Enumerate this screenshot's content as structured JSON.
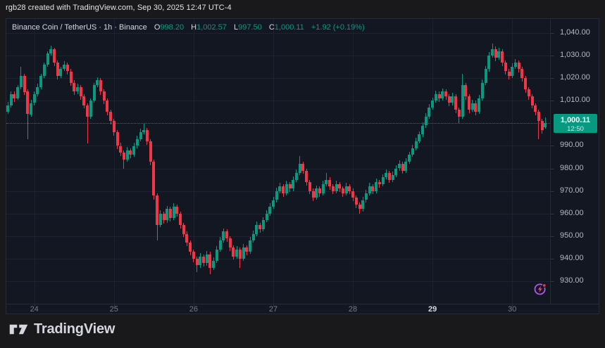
{
  "attribution": "rgb28 created with TradingView.com, Sep 30, 2025 12:47 UTC-4",
  "legend": {
    "title": "Binance Coin / TetherUS · 1h · Binance",
    "o_label": "O",
    "o_value": "998.20",
    "h_label": "H",
    "h_value": "1,002.57",
    "l_label": "L",
    "l_value": "997.50",
    "c_label": "C",
    "c_value": "1,000.11",
    "change": "+1.92 (+0.19%)"
  },
  "price_scale": {
    "ticks": [
      "1,040.00",
      "1,030.00",
      "1,020.00",
      "1,010.00",
      "990.00",
      "980.00",
      "970.00",
      "960.00",
      "950.00",
      "940.00",
      "930.00"
    ],
    "last_price": "1,000.11",
    "countdown": "12:50"
  },
  "time_scale": {
    "labels": [
      {
        "text": "24",
        "strong": false
      },
      {
        "text": "25",
        "strong": false
      },
      {
        "text": "26",
        "strong": false
      },
      {
        "text": "27",
        "strong": false
      },
      {
        "text": "28",
        "strong": false
      },
      {
        "text": "29",
        "strong": true
      },
      {
        "text": "30",
        "strong": false
      }
    ]
  },
  "footer": {
    "brand": "TradingView"
  },
  "colors": {
    "up": "#089981",
    "down": "#f23645",
    "panel_bg": "#131722",
    "outer_bg": "#19191c",
    "grid": "#1d2130",
    "axis_text": "#787b86",
    "price_text": "#b6b9c1",
    "title_text": "#d6d9e0",
    "label_bg": "#089981",
    "flash_purple": "#a957e3",
    "flash_bolt": "#f0437c",
    "flash_dot": "#f23645"
  },
  "chart_data": {
    "type": "candlestick",
    "symbol": "Binance Coin / TetherUS",
    "interval": "1h",
    "exchange": "Binance",
    "title": "Binance Coin / TetherUS · 1h · Binance",
    "last": {
      "open": 998.2,
      "high": 1002.57,
      "low": 997.5,
      "close": 1000.11,
      "change": "+1.92",
      "change_pct": "+0.19%"
    },
    "x_days": [
      "24",
      "25",
      "26",
      "27",
      "28",
      "29",
      "30"
    ],
    "y_ticks": [
      1040,
      1030,
      1020,
      1010,
      990,
      980,
      970,
      960,
      950,
      940,
      930
    ],
    "y_range": [
      925,
      1046
    ],
    "grid": true,
    "legend_position": "top-left",
    "candles_note": "hourly OHLC [open,high,low,close], Sep 23 16:00 through Sep 30 ~12:00, values estimated from gridlines",
    "candles": [
      [
        1005,
        1009.5,
        1004,
        1008
      ],
      [
        1008,
        1014,
        1007,
        1013
      ],
      [
        1013,
        1014,
        1009.5,
        1011
      ],
      [
        1011,
        1017,
        1010.5,
        1016
      ],
      [
        1016,
        1025,
        1015,
        1021
      ],
      [
        1021,
        1022,
        1012.5,
        1014
      ],
      [
        1014,
        1015,
        993,
        1004
      ],
      [
        1004,
        1010.5,
        1003,
        1009
      ],
      [
        1009,
        1014,
        1008,
        1013
      ],
      [
        1013,
        1017.5,
        1012,
        1016
      ],
      [
        1016,
        1022,
        1015,
        1021
      ],
      [
        1021,
        1027,
        1020,
        1026
      ],
      [
        1026,
        1032,
        1025,
        1031
      ],
      [
        1031,
        1034.5,
        1030,
        1033
      ],
      [
        1033,
        1033.5,
        1025.5,
        1027
      ],
      [
        1027,
        1028,
        1019.5,
        1021
      ],
      [
        1021,
        1025,
        1020,
        1024
      ],
      [
        1024,
        1027.5,
        1023,
        1026
      ],
      [
        1026,
        1027,
        1021.5,
        1023
      ],
      [
        1023,
        1024,
        1016.5,
        1018
      ],
      [
        1018,
        1019,
        1012.5,
        1014
      ],
      [
        1014,
        1017.5,
        1013,
        1016
      ],
      [
        1016,
        1017,
        1010.5,
        1012
      ],
      [
        1012,
        1013,
        1006.5,
        1008
      ],
      [
        1008,
        1009,
        991,
        1003
      ],
      [
        1003,
        1011,
        1002,
        1010
      ],
      [
        1010,
        1018,
        1009,
        1017
      ],
      [
        1017,
        1020.5,
        1016,
        1019
      ],
      [
        1019,
        1020,
        1012.5,
        1014
      ],
      [
        1014,
        1015,
        1008.5,
        1010
      ],
      [
        1010,
        1011,
        1003.5,
        1005
      ],
      [
        1005,
        1006,
        999.5,
        1001
      ],
      [
        1001,
        1002,
        994.5,
        996
      ],
      [
        996,
        997,
        988.5,
        990
      ],
      [
        990,
        991.5,
        985.5,
        987
      ],
      [
        987,
        988,
        980,
        984
      ],
      [
        984,
        989.5,
        983,
        988
      ],
      [
        988,
        989,
        984.5,
        986
      ],
      [
        986,
        991.5,
        985,
        990
      ],
      [
        990,
        994.5,
        989,
        993
      ],
      [
        993,
        997.5,
        992,
        996
      ],
      [
        996,
        1000,
        995,
        997
      ],
      [
        997,
        998,
        990.5,
        992
      ],
      [
        992,
        993,
        981.5,
        983
      ],
      [
        983,
        984,
        966,
        968
      ],
      [
        968,
        969,
        948,
        955
      ],
      [
        955,
        961.5,
        954,
        960
      ],
      [
        960,
        961,
        955.5,
        957
      ],
      [
        957,
        963.5,
        956,
        962
      ],
      [
        962,
        963,
        956.5,
        958
      ],
      [
        958,
        964.5,
        957,
        963
      ],
      [
        963,
        964,
        958.5,
        960
      ],
      [
        960,
        961,
        953.5,
        955
      ],
      [
        955,
        956,
        949.5,
        951
      ],
      [
        951,
        952,
        945.5,
        947
      ],
      [
        947,
        948,
        941.5,
        943
      ],
      [
        943,
        944,
        938.5,
        940
      ],
      [
        940,
        941,
        934,
        937
      ],
      [
        937,
        942.5,
        936,
        941
      ],
      [
        941,
        942,
        936.5,
        938
      ],
      [
        938,
        943.5,
        937,
        942
      ],
      [
        942,
        943,
        933,
        936
      ],
      [
        936,
        940.5,
        935,
        939
      ],
      [
        939,
        945.5,
        938,
        944
      ],
      [
        944,
        949.5,
        943,
        948
      ],
      [
        948,
        953.5,
        947,
        952
      ],
      [
        952,
        953,
        947.5,
        949
      ],
      [
        949,
        950,
        943.5,
        945
      ],
      [
        945,
        946,
        939.5,
        941
      ],
      [
        941,
        945.5,
        940,
        944
      ],
      [
        944,
        945,
        936,
        940
      ],
      [
        940,
        946.5,
        939,
        945
      ],
      [
        945,
        946,
        941.5,
        943
      ],
      [
        943,
        949.5,
        942,
        948
      ],
      [
        948,
        952.5,
        947,
        951
      ],
      [
        951,
        956.5,
        950,
        955
      ],
      [
        955,
        956,
        951.5,
        953
      ],
      [
        953,
        958.5,
        952,
        957
      ],
      [
        957,
        961.5,
        956,
        960
      ],
      [
        960,
        964.5,
        959,
        963
      ],
      [
        963,
        967.5,
        962,
        966
      ],
      [
        966,
        971.5,
        965,
        970
      ],
      [
        970,
        973.5,
        969,
        972
      ],
      [
        972,
        973,
        967.5,
        969
      ],
      [
        969,
        974.5,
        968,
        973
      ],
      [
        973,
        974,
        969.5,
        971
      ],
      [
        971,
        976.5,
        970,
        975
      ],
      [
        975,
        979.5,
        974,
        978
      ],
      [
        978,
        985.5,
        977,
        982
      ],
      [
        982,
        983,
        977.5,
        979
      ],
      [
        979,
        980,
        972.5,
        974
      ],
      [
        974,
        975,
        968.5,
        970
      ],
      [
        970,
        971,
        965.5,
        967
      ],
      [
        967,
        972.5,
        966,
        971
      ],
      [
        971,
        972,
        967.5,
        969
      ],
      [
        969,
        974.5,
        968,
        973
      ],
      [
        973,
        978,
        972,
        975
      ],
      [
        975,
        976,
        970.5,
        972
      ],
      [
        972,
        973,
        968.5,
        970
      ],
      [
        970,
        974.5,
        969,
        973
      ],
      [
        973,
        974,
        969.5,
        971
      ],
      [
        971,
        972,
        967.5,
        969
      ],
      [
        969,
        973.5,
        968,
        972
      ],
      [
        972,
        973,
        968.5,
        970
      ],
      [
        970,
        971,
        965.5,
        967
      ],
      [
        967,
        968,
        962.5,
        964
      ],
      [
        964,
        965,
        960,
        962
      ],
      [
        962,
        967.5,
        961,
        966
      ],
      [
        966,
        970.5,
        965,
        969
      ],
      [
        969,
        973.5,
        968,
        972
      ],
      [
        972,
        973,
        968.5,
        970
      ],
      [
        970,
        975.5,
        969,
        974
      ],
      [
        974,
        975,
        971.5,
        973
      ],
      [
        973,
        977.5,
        972,
        976
      ],
      [
        976,
        979.5,
        975,
        978
      ],
      [
        978,
        979,
        973.5,
        975
      ],
      [
        975,
        978.5,
        974,
        977
      ],
      [
        977,
        981.5,
        976,
        980
      ],
      [
        980,
        983.5,
        979,
        982
      ],
      [
        982,
        983,
        977.5,
        979
      ],
      [
        979,
        984.5,
        978,
        983
      ],
      [
        983,
        987.5,
        982,
        986
      ],
      [
        986,
        990.5,
        985,
        989
      ],
      [
        989,
        993.5,
        988,
        992
      ],
      [
        992,
        996.5,
        991,
        995
      ],
      [
        995,
        1000.5,
        994,
        999
      ],
      [
        999,
        1004.5,
        998,
        1003
      ],
      [
        1003,
        1008.5,
        1002,
        1007
      ],
      [
        1007,
        1011.5,
        1006,
        1010
      ],
      [
        1010,
        1014.5,
        1009,
        1013
      ],
      [
        1013,
        1014,
        1009.5,
        1011
      ],
      [
        1011,
        1015.5,
        1010,
        1014
      ],
      [
        1014,
        1015,
        1010.5,
        1012
      ],
      [
        1012,
        1013,
        1007.5,
        1009
      ],
      [
        1009,
        1013.5,
        1008,
        1012
      ],
      [
        1012,
        1013,
        1004.5,
        1006
      ],
      [
        1006,
        1007,
        1000,
        1003
      ],
      [
        1003,
        1022,
        1002,
        1017
      ],
      [
        1017,
        1018,
        1010.5,
        1012
      ],
      [
        1012,
        1013,
        1004.5,
        1006
      ],
      [
        1006,
        1010.5,
        1005,
        1009
      ],
      [
        1009,
        1010,
        1003.5,
        1005
      ],
      [
        1005,
        1012.5,
        1004,
        1011
      ],
      [
        1011,
        1019.5,
        1010,
        1018
      ],
      [
        1018,
        1025.5,
        1017,
        1024
      ],
      [
        1024,
        1031.5,
        1023,
        1030
      ],
      [
        1030,
        1035.3,
        1029,
        1033
      ],
      [
        1033,
        1034,
        1027.5,
        1029
      ],
      [
        1029,
        1033.5,
        1028,
        1032
      ],
      [
        1032,
        1033,
        1025.5,
        1027
      ],
      [
        1027,
        1028,
        1021.5,
        1023
      ],
      [
        1023,
        1024,
        1019.5,
        1021
      ],
      [
        1021,
        1026.5,
        1020,
        1025
      ],
      [
        1025,
        1028.5,
        1024,
        1027
      ],
      [
        1027,
        1028,
        1022.5,
        1024
      ],
      [
        1024,
        1025,
        1018.5,
        1020
      ],
      [
        1020,
        1021,
        1013.5,
        1015
      ],
      [
        1015,
        1016,
        1010.5,
        1012
      ],
      [
        1012,
        1013,
        1006.5,
        1008
      ],
      [
        1008,
        1009,
        1003.5,
        1005
      ],
      [
        1005,
        1006,
        993,
        1001
      ],
      [
        1001,
        1002,
        995.5,
        997
      ],
      [
        998.2,
        1002.57,
        997.5,
        1000.11
      ]
    ]
  }
}
